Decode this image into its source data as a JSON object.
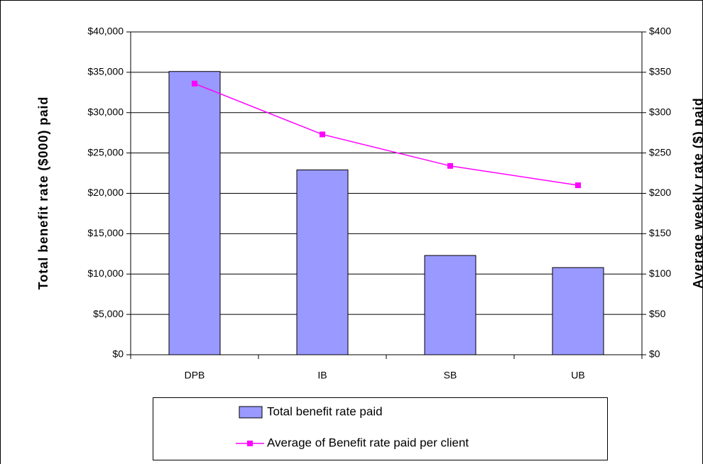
{
  "chart_data": {
    "type": "bar_line",
    "categories": [
      "DPB",
      "IB",
      "SB",
      "UB"
    ],
    "series": [
      {
        "name": "Total benefit rate paid",
        "type": "bar",
        "color": "#9999ff",
        "values": [
          35100,
          22900,
          12300,
          10800
        ]
      },
      {
        "name": "Average of Benefit rate paid per client",
        "type": "line",
        "axis": "y2",
        "color": "#ff00ff",
        "values": [
          336,
          273,
          234,
          210
        ]
      }
    ],
    "ylabel": "Total benefit rate ($000) paid",
    "y2label": "Average weekly rate ($) paid",
    "ylim": [
      0,
      40000
    ],
    "yticks": [
      {
        "value": 0,
        "label": "$0"
      },
      {
        "value": 5000,
        "label": "$5,000"
      },
      {
        "value": 10000,
        "label": "$10,000"
      },
      {
        "value": 15000,
        "label": "$15,000"
      },
      {
        "value": 20000,
        "label": "$20,000"
      },
      {
        "value": 25000,
        "label": "$25,000"
      },
      {
        "value": 30000,
        "label": "$30,000"
      },
      {
        "value": 35000,
        "label": "$35,000"
      },
      {
        "value": 40000,
        "label": "$40,000"
      }
    ],
    "y2lim": [
      0,
      400
    ],
    "y2ticks": [
      {
        "value": 0,
        "label": "$0"
      },
      {
        "value": 50,
        "label": "$50"
      },
      {
        "value": 100,
        "label": "$100"
      },
      {
        "value": 150,
        "label": "$150"
      },
      {
        "value": 200,
        "label": "$200"
      },
      {
        "value": 250,
        "label": "$250"
      },
      {
        "value": 300,
        "label": "$300"
      },
      {
        "value": 350,
        "label": "$350"
      },
      {
        "value": 400,
        "label": "$400"
      }
    ],
    "grid": true
  }
}
